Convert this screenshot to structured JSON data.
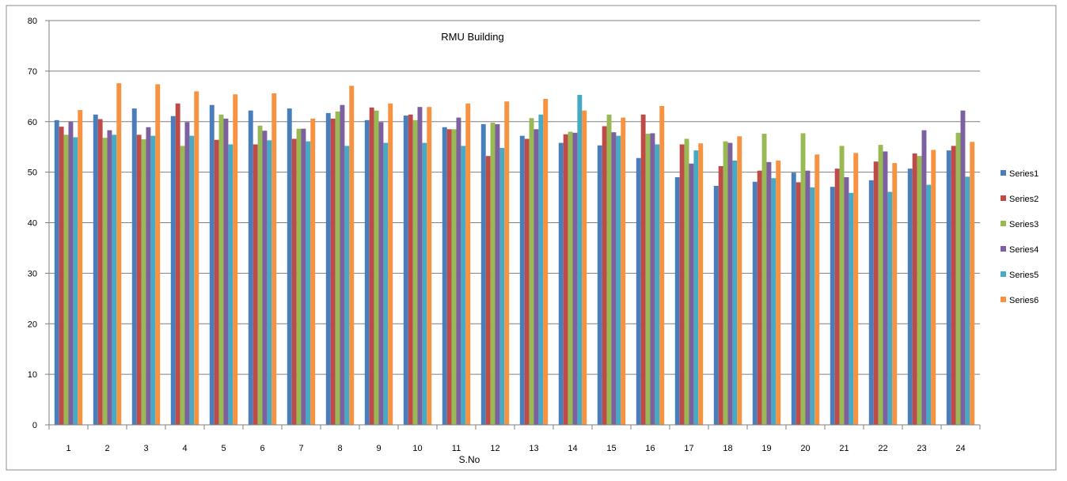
{
  "chart_data": {
    "type": "bar",
    "title": "RMU Building",
    "xlabel": "S.No",
    "ylabel": "",
    "ylim": [
      0,
      80
    ],
    "yticks": [
      0,
      10,
      20,
      30,
      40,
      50,
      60,
      70,
      80
    ],
    "grid": true,
    "legend_position": "right",
    "categories": [
      "1",
      "2",
      "3",
      "4",
      "5",
      "6",
      "7",
      "8",
      "9",
      "10",
      "11",
      "12",
      "13",
      "14",
      "15",
      "16",
      "17",
      "18",
      "19",
      "20",
      "21",
      "22",
      "23",
      "24"
    ],
    "series": [
      {
        "name": "Series1",
        "color": "#4a7ebb",
        "values": [
          60.3,
          61.4,
          62.6,
          61.1,
          63.3,
          62.2,
          62.6,
          61.7,
          60.3,
          61.2,
          58.9,
          59.5,
          57.2,
          55.8,
          55.3,
          52.8,
          49.0,
          47.3,
          48.1,
          49.9,
          47.1,
          48.4,
          50.7,
          54.3
        ]
      },
      {
        "name": "Series2",
        "color": "#be4b48",
        "values": [
          59.0,
          60.5,
          57.4,
          63.6,
          56.4,
          55.5,
          56.6,
          60.6,
          62.8,
          61.4,
          58.5,
          53.2,
          56.6,
          57.5,
          59.1,
          61.4,
          55.5,
          51.2,
          50.3,
          48.0,
          50.7,
          52.1,
          53.7,
          55.2
        ]
      },
      {
        "name": "Series3",
        "color": "#98b954",
        "values": [
          57.4,
          56.8,
          56.5,
          55.2,
          61.4,
          59.2,
          58.6,
          62.0,
          62.2,
          60.3,
          58.5,
          59.8,
          60.7,
          58.0,
          61.4,
          57.6,
          56.6,
          56.1,
          57.6,
          57.7,
          55.2,
          55.4,
          53.2,
          57.8
        ]
      },
      {
        "name": "Series4",
        "color": "#7d60a0",
        "values": [
          60.0,
          58.3,
          58.9,
          59.9,
          60.6,
          58.2,
          58.6,
          63.3,
          59.9,
          62.9,
          60.8,
          59.5,
          58.5,
          57.8,
          57.9,
          57.7,
          51.7,
          55.8,
          52.0,
          50.3,
          49.0,
          54.1,
          58.3,
          62.2
        ]
      },
      {
        "name": "Series5",
        "color": "#46aac5",
        "values": [
          56.9,
          57.4,
          57.2,
          57.2,
          55.5,
          56.3,
          56.1,
          55.2,
          55.8,
          55.8,
          55.2,
          54.8,
          61.4,
          65.3,
          57.2,
          55.5,
          54.3,
          52.3,
          48.8,
          47.0,
          45.9,
          46.1,
          47.5,
          49.1
        ]
      },
      {
        "name": "Series6",
        "color": "#f69240",
        "values": [
          62.3,
          67.6,
          67.4,
          66.0,
          65.4,
          65.6,
          60.6,
          67.1,
          63.6,
          62.9,
          63.6,
          64.0,
          64.5,
          62.2,
          60.8,
          63.1,
          55.7,
          57.1,
          52.3,
          53.5,
          53.8,
          51.8,
          54.4,
          56.0
        ]
      }
    ]
  }
}
